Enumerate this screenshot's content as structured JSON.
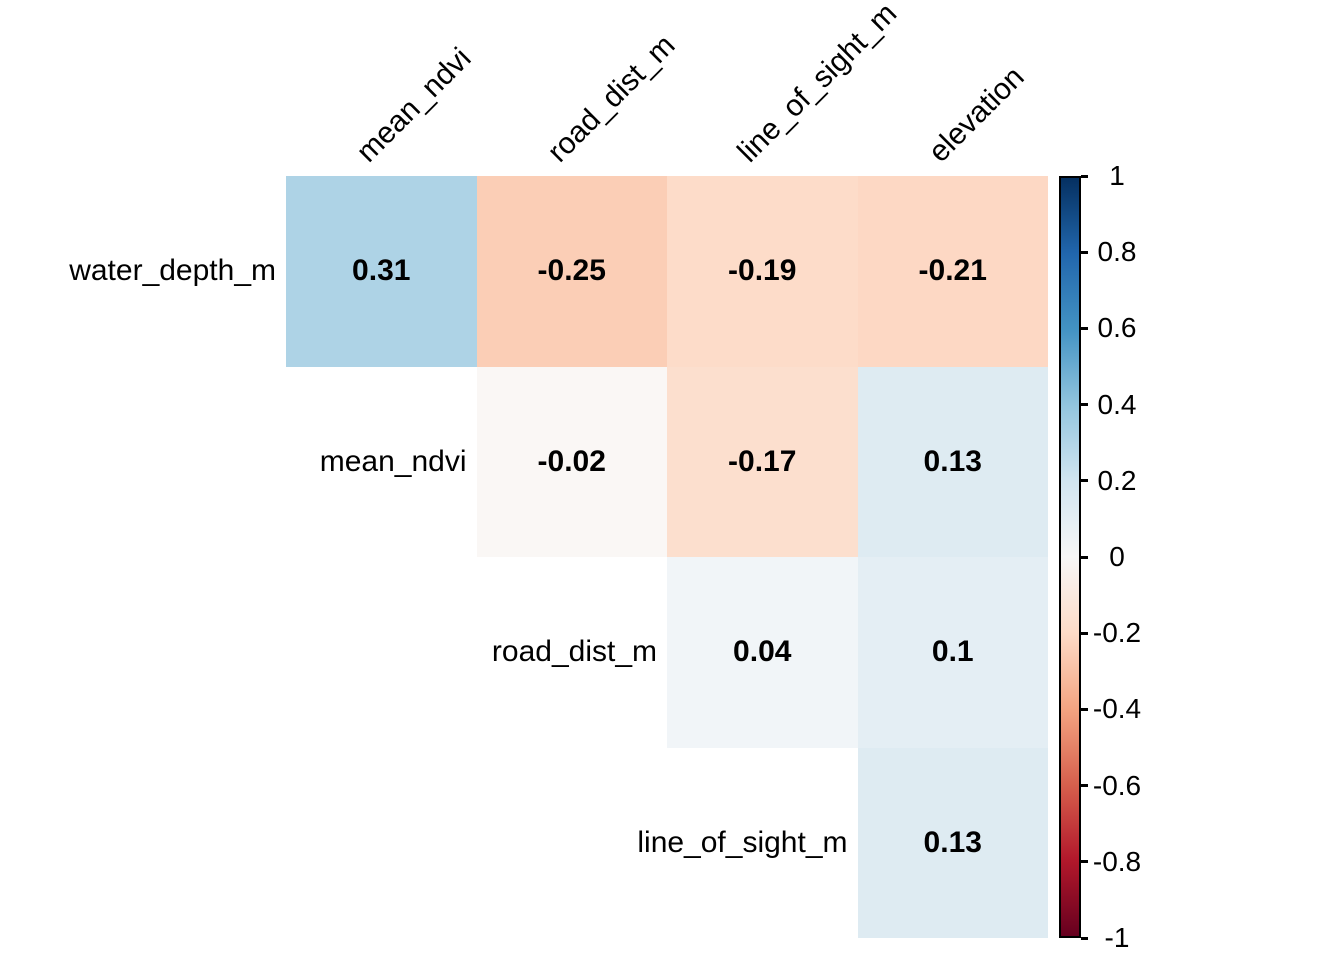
{
  "figure": {
    "background_color": "#FFFFFF",
    "text_color": "#000000",
    "value_font_weight": "bold"
  },
  "chart_data": {
    "type": "heatmap",
    "subtype": "correlation-matrix-upper-triangle",
    "palette": "RdBu",
    "grid": false,
    "variables": [
      "water_depth_m",
      "mean_ndvi",
      "road_dist_m",
      "line_of_sight_m",
      "elevation"
    ],
    "row_labels": [
      "water_depth_m",
      "mean_ndvi",
      "road_dist_m",
      "line_of_sight_m"
    ],
    "col_labels": [
      "mean_ndvi",
      "road_dist_m",
      "line_of_sight_m",
      "elevation"
    ],
    "cells": [
      {
        "row": 0,
        "col": 0,
        "row_var": "water_depth_m",
        "col_var": "mean_ndvi",
        "value": 0.31,
        "label": "0.31",
        "color": "#AED3E6"
      },
      {
        "row": 0,
        "col": 1,
        "row_var": "water_depth_m",
        "col_var": "road_dist_m",
        "value": -0.25,
        "label": "-0.25",
        "color": "#FBCEB6"
      },
      {
        "row": 0,
        "col": 2,
        "row_var": "water_depth_m",
        "col_var": "line_of_sight_m",
        "value": -0.19,
        "label": "-0.19",
        "color": "#FDDCC9"
      },
      {
        "row": 0,
        "col": 3,
        "row_var": "water_depth_m",
        "col_var": "elevation",
        "value": -0.21,
        "label": "-0.21",
        "color": "#FDD8C4"
      },
      {
        "row": 1,
        "col": 1,
        "row_var": "mean_ndvi",
        "col_var": "road_dist_m",
        "value": -0.02,
        "label": "-0.02",
        "color": "#FAF7F5"
      },
      {
        "row": 1,
        "col": 2,
        "row_var": "mean_ndvi",
        "col_var": "line_of_sight_m",
        "value": -0.17,
        "label": "-0.17",
        "color": "#FCDFCE"
      },
      {
        "row": 1,
        "col": 3,
        "row_var": "mean_ndvi",
        "col_var": "elevation",
        "value": 0.13,
        "label": "0.13",
        "color": "#DEEBF2"
      },
      {
        "row": 2,
        "col": 2,
        "row_var": "road_dist_m",
        "col_var": "line_of_sight_m",
        "value": 0.04,
        "label": "0.04",
        "color": "#F1F5F8"
      },
      {
        "row": 2,
        "col": 3,
        "row_var": "road_dist_m",
        "col_var": "elevation",
        "value": 0.1,
        "label": "0.1",
        "color": "#E4EEF4"
      },
      {
        "row": 3,
        "col": 3,
        "row_var": "line_of_sight_m",
        "col_var": "elevation",
        "value": 0.13,
        "label": "0.13",
        "color": "#DEEBF2"
      }
    ],
    "colorbar": {
      "range": [
        -1,
        1
      ],
      "tick_labels": [
        "1",
        "0.8",
        "0.6",
        "0.4",
        "0.2",
        "0",
        "-0.2",
        "-0.4",
        "-0.6",
        "-0.8",
        "-1"
      ],
      "gradient_stops_top_to_bottom": [
        "#053061",
        "#2166AC",
        "#4393C3",
        "#92C5DE",
        "#D1E5F0",
        "#F7F7F7",
        "#FDDBC7",
        "#F4A582",
        "#D6604D",
        "#B2182B",
        "#67001F"
      ],
      "border_color": "#000000"
    }
  }
}
